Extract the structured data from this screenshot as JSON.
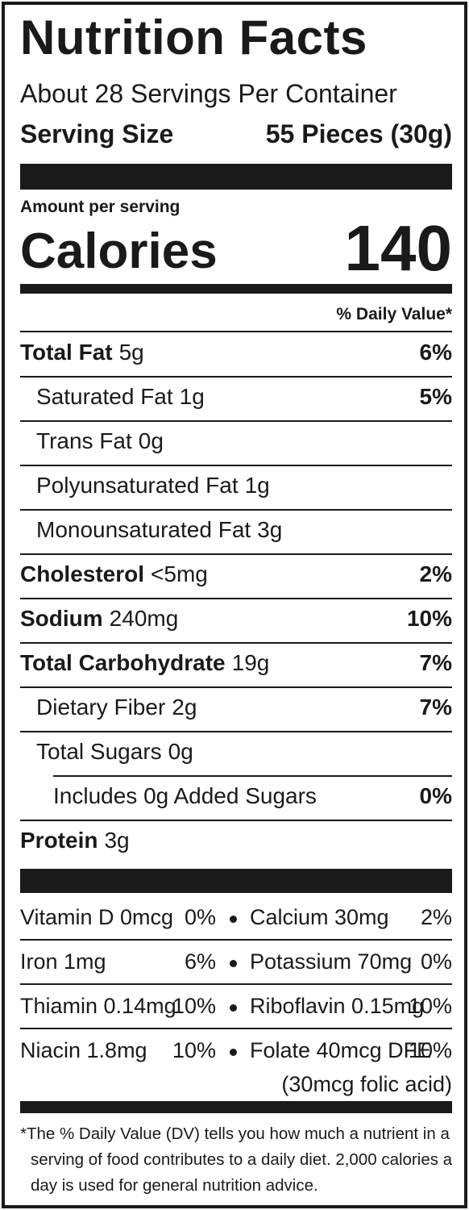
{
  "title": "Nutrition Facts",
  "servings": "About 28 Servings Per Container",
  "serving_size": {
    "label": "Serving Size",
    "value": "55 Pieces (30g)"
  },
  "amount_per_serving": "Amount per serving",
  "calories": {
    "label": "Calories",
    "value": "140"
  },
  "daily_value_header": "% Daily Value*",
  "nutrients": [
    {
      "name": "Total Fat",
      "amount": "5g",
      "dv": "6%"
    },
    {
      "name": "Saturated Fat",
      "amount": "1g",
      "dv": "5%"
    },
    {
      "name": "Trans Fat",
      "amount": "0g"
    },
    {
      "name": "Polyunsaturated Fat",
      "amount": "1g"
    },
    {
      "name": "Monounsaturated Fat",
      "amount": "3g"
    },
    {
      "name": "Cholesterol",
      "amount": "<5mg",
      "dv": "2%"
    },
    {
      "name": "Sodium",
      "amount": "240mg",
      "dv": "10%"
    },
    {
      "name": "Total Carbohydrate",
      "amount": "19g",
      "dv": "7%"
    },
    {
      "name": "Dietary Fiber",
      "amount": "2g",
      "dv": "7%"
    },
    {
      "name": "Total Sugars",
      "amount": "0g"
    },
    {
      "name": "Includes 0g Added Sugars",
      "dv": "0%"
    },
    {
      "name": "Protein",
      "amount": "3g"
    }
  ],
  "vitamins": [
    [
      {
        "name": "Vitamin D 0mcg",
        "dv": "0%"
      },
      {
        "name": "Calcium 30mg",
        "dv": "2%"
      }
    ],
    [
      {
        "name": "Iron 1mg",
        "dv": "6%"
      },
      {
        "name": "Potassium 70mg",
        "dv": "0%"
      }
    ],
    [
      {
        "name": "Thiamin 0.14mg",
        "dv": "10%"
      },
      {
        "name": "Riboflavin 0.15mg",
        "dv": "10%"
      }
    ],
    [
      {
        "name": "Niacin 1.8mg",
        "dv": "10%"
      },
      {
        "name": "Folate 40mcg DFE",
        "dv": "10%"
      }
    ]
  ],
  "folate_note": "(30mcg folic acid)",
  "footnote": "*The % Daily Value (DV) tells you how much a nutrient in a serving of food contributes to a daily diet. 2,000 calories a day is used for general nutrition advice."
}
